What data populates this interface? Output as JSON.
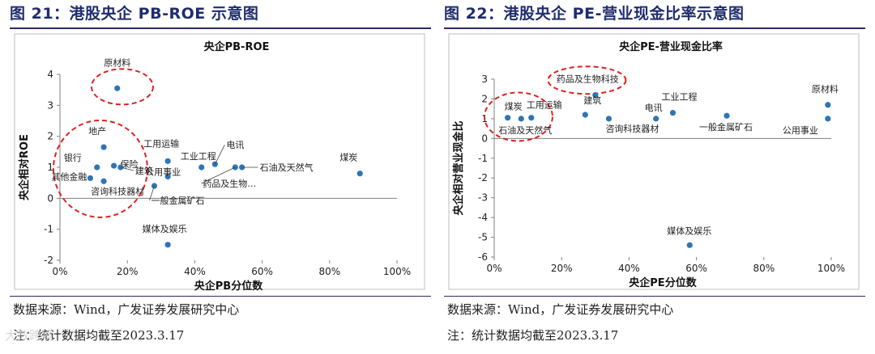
{
  "left": {
    "figure_title": "图 21：港股央企 PB-ROE 示意图",
    "source": "数据来源：Wind，广发证券发展研究中心",
    "note": "注：统计数据均截至2023.3.17"
  },
  "right": {
    "figure_title": "图 22：港股央企 PE-营业现金比率示意图",
    "source": "数据来源：Wind，广发证券发展研究中心",
    "note": "注：统计数据均截至2023.3.17"
  },
  "watermark": "大数跨境",
  "chart_data": [
    {
      "type": "scatter",
      "title": "央企PB-ROE",
      "xlabel": "央企PB分位数",
      "ylabel": "央企相对ROE",
      "xlim": [
        0,
        1
      ],
      "ylim": [
        -2,
        4
      ],
      "xticks": [
        "0%",
        "20%",
        "40%",
        "60%",
        "80%",
        "100%"
      ],
      "yticks": [
        "-2",
        "-1",
        "0",
        "1",
        "2",
        "3",
        "4"
      ],
      "grid": false,
      "legend": "none",
      "marker_color": "#2e75b6",
      "highlight_color": "#e02020",
      "points": [
        {
          "label": "原材料",
          "x": 0.17,
          "y": 3.55
        },
        {
          "label": "地产",
          "x": 0.13,
          "y": 1.65
        },
        {
          "label": "保险",
          "x": 0.16,
          "y": 1.05
        },
        {
          "label": "银行",
          "x": 0.11,
          "y": 1.0
        },
        {
          "label": "其他金融",
          "x": 0.09,
          "y": 0.65
        },
        {
          "label": "建筑",
          "x": 0.18,
          "y": 1.0
        },
        {
          "label": "咨询科技器材",
          "x": 0.13,
          "y": 0.55
        },
        {
          "label": "工用运输",
          "x": 0.32,
          "y": 1.2
        },
        {
          "label": "公用事业",
          "x": 0.32,
          "y": 0.7
        },
        {
          "label": "一般金属矿石",
          "x": 0.28,
          "y": 0.4
        },
        {
          "label": "工业工程",
          "x": 0.42,
          "y": 1.0
        },
        {
          "label": "电讯",
          "x": 0.46,
          "y": 1.1
        },
        {
          "label": "药品及生物…",
          "x": 0.52,
          "y": 1.0
        },
        {
          "label": "石油及天然气",
          "x": 0.54,
          "y": 1.0
        },
        {
          "label": "煤炭",
          "x": 0.89,
          "y": 0.8
        },
        {
          "label": "媒体及娱乐",
          "x": 0.32,
          "y": -1.5
        }
      ]
    },
    {
      "type": "scatter",
      "title": "央企PE-营业现金比率",
      "xlabel": "央企PE分位数",
      "ylabel": "央企相对营业现金比",
      "xlim": [
        0,
        1
      ],
      "ylim": [
        -6,
        3
      ],
      "xticks": [
        "0%",
        "20%",
        "40%",
        "60%",
        "80%",
        "100%"
      ],
      "yticks": [
        "-6",
        "-5",
        "-4",
        "-3",
        "-2",
        "-1",
        "0",
        "1",
        "2",
        "3"
      ],
      "grid": false,
      "legend": "none",
      "marker_color": "#2e75b6",
      "highlight_color": "#e02020",
      "points": [
        {
          "label": "煤炭",
          "x": 0.04,
          "y": 1.05
        },
        {
          "label": "石油及天然气",
          "x": 0.08,
          "y": 1.0
        },
        {
          "label": "工用运输",
          "x": 0.11,
          "y": 1.05
        },
        {
          "label": "药品及生物科技",
          "x": 0.3,
          "y": 2.2
        },
        {
          "label": "建筑",
          "x": 0.27,
          "y": 1.2
        },
        {
          "label": "咨询科技器材",
          "x": 0.34,
          "y": 1.0
        },
        {
          "label": "电讯",
          "x": 0.48,
          "y": 1.0
        },
        {
          "label": "工业工程",
          "x": 0.53,
          "y": 1.3
        },
        {
          "label": "一般金属矿石",
          "x": 0.69,
          "y": 1.15
        },
        {
          "label": "原材料",
          "x": 0.99,
          "y": 1.7
        },
        {
          "label": "公用事业",
          "x": 0.99,
          "y": 1.0
        },
        {
          "label": "媒体及娱乐",
          "x": 0.58,
          "y": -5.4
        }
      ]
    }
  ]
}
